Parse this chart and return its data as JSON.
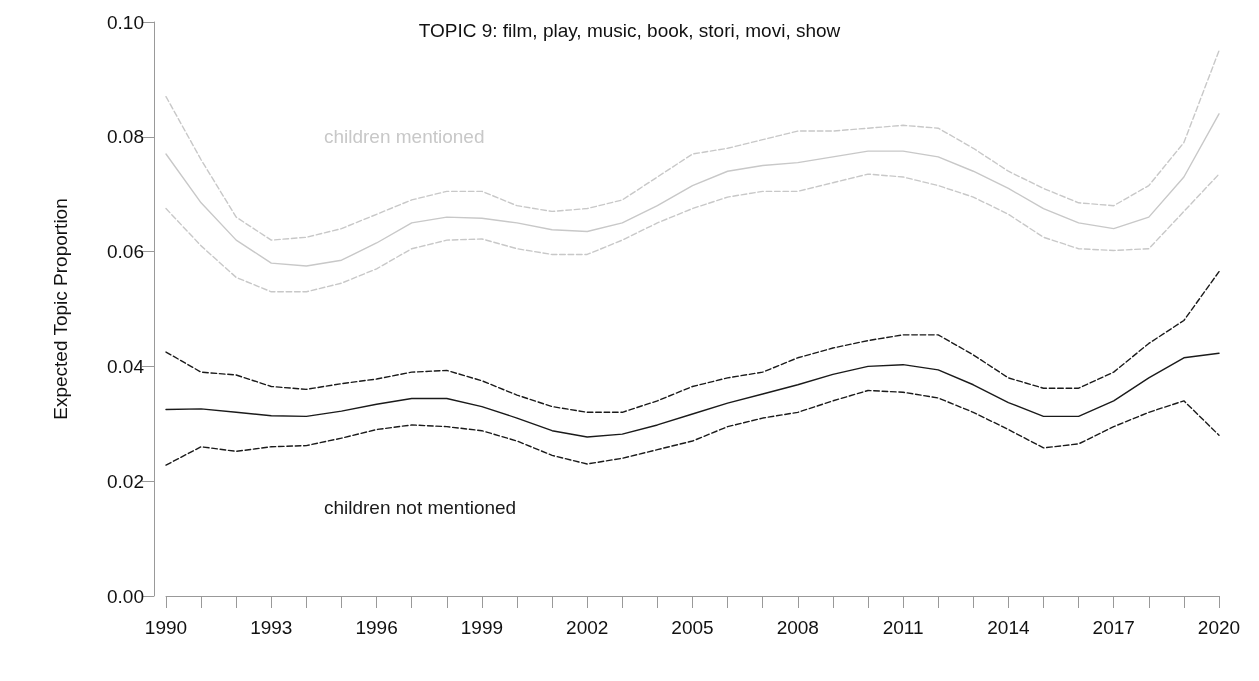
{
  "chart_data": {
    "type": "line",
    "title": "TOPIC 9: film, play, music, book, stori, movi, show",
    "ylabel": "Expected Topic Proportion",
    "x": [
      1990,
      1991,
      1992,
      1993,
      1994,
      1995,
      1996,
      1997,
      1998,
      1999,
      2000,
      2001,
      2002,
      2003,
      2004,
      2005,
      2006,
      2007,
      2008,
      2009,
      2010,
      2011,
      2012,
      2013,
      2014,
      2015,
      2016,
      2017,
      2018,
      2019,
      2020
    ],
    "series": [
      {
        "name": "children mentioned",
        "color": "#c8c8c8",
        "line_style": "solid",
        "values": [
          0.077,
          0.0685,
          0.062,
          0.058,
          0.0575,
          0.0585,
          0.0615,
          0.065,
          0.066,
          0.0658,
          0.065,
          0.0638,
          0.0635,
          0.065,
          0.068,
          0.0715,
          0.074,
          0.075,
          0.0755,
          0.0765,
          0.0775,
          0.0775,
          0.0765,
          0.074,
          0.071,
          0.0675,
          0.065,
          0.064,
          0.066,
          0.073,
          0.084
        ]
      },
      {
        "color": "#c8c8c8",
        "line_style": "dashed",
        "values": [
          0.087,
          0.076,
          0.066,
          0.062,
          0.0625,
          0.064,
          0.0665,
          0.069,
          0.0705,
          0.0705,
          0.068,
          0.067,
          0.0675,
          0.069,
          0.073,
          0.077,
          0.078,
          0.0795,
          0.081,
          0.081,
          0.0815,
          0.082,
          0.0815,
          0.078,
          0.074,
          0.071,
          0.0685,
          0.068,
          0.0715,
          0.079,
          0.095
        ]
      },
      {
        "color": "#c8c8c8",
        "line_style": "dashed",
        "values": [
          0.0675,
          0.061,
          0.0555,
          0.053,
          0.053,
          0.0545,
          0.057,
          0.0605,
          0.062,
          0.0622,
          0.0605,
          0.0595,
          0.0595,
          0.062,
          0.065,
          0.0675,
          0.0695,
          0.0705,
          0.0705,
          0.072,
          0.0735,
          0.073,
          0.0715,
          0.0695,
          0.0665,
          0.0625,
          0.0605,
          0.0602,
          0.0605,
          0.067,
          0.0735
        ]
      },
      {
        "name": "children not mentioned",
        "color": "#1a1a1a",
        "line_style": "solid",
        "values": [
          0.0325,
          0.0326,
          0.032,
          0.0314,
          0.0313,
          0.0322,
          0.0334,
          0.0344,
          0.0344,
          0.033,
          0.031,
          0.0288,
          0.0277,
          0.0282,
          0.0298,
          0.0317,
          0.0336,
          0.0352,
          0.0368,
          0.0386,
          0.04,
          0.0403,
          0.0394,
          0.0368,
          0.0337,
          0.0313,
          0.0313,
          0.034,
          0.038,
          0.0415,
          0.0423
        ]
      },
      {
        "color": "#1a1a1a",
        "line_style": "dashed",
        "values": [
          0.0425,
          0.039,
          0.0385,
          0.0365,
          0.036,
          0.037,
          0.0378,
          0.039,
          0.0393,
          0.0375,
          0.035,
          0.033,
          0.032,
          0.032,
          0.034,
          0.0365,
          0.038,
          0.039,
          0.0415,
          0.0432,
          0.0445,
          0.0455,
          0.0455,
          0.042,
          0.038,
          0.0362,
          0.0362,
          0.039,
          0.044,
          0.048,
          0.0565
        ]
      },
      {
        "color": "#1a1a1a",
        "line_style": "dashed",
        "values": [
          0.0228,
          0.026,
          0.0252,
          0.026,
          0.0262,
          0.0275,
          0.029,
          0.0298,
          0.0295,
          0.0288,
          0.027,
          0.0245,
          0.023,
          0.024,
          0.0255,
          0.027,
          0.0295,
          0.031,
          0.032,
          0.034,
          0.0358,
          0.0355,
          0.0345,
          0.032,
          0.029,
          0.0258,
          0.0265,
          0.0295,
          0.032,
          0.034,
          0.028
        ]
      }
    ],
    "xlim": [
      1990,
      2020
    ],
    "xticks": [
      1990,
      {
        "value": 1991,
        "label": null
      },
      {
        "value": 1992,
        "label": null
      },
      1993,
      {
        "value": 1994,
        "label": null
      },
      {
        "value": 1995,
        "label": null
      },
      1996,
      {
        "value": 1997,
        "label": null
      },
      {
        "value": 1998,
        "label": null
      },
      1999,
      {
        "value": 2000,
        "label": null
      },
      {
        "value": 2001,
        "label": null
      },
      2002,
      {
        "value": 2003,
        "label": null
      },
      {
        "value": 2004,
        "label": null
      },
      2005,
      {
        "value": 2006,
        "label": null
      },
      {
        "value": 2007,
        "label": null
      },
      2008,
      {
        "value": 2009,
        "label": null
      },
      {
        "value": 2010,
        "label": null
      },
      2011,
      {
        "value": 2012,
        "label": null
      },
      {
        "value": 2013,
        "label": null
      },
      2014,
      {
        "value": 2015,
        "label": null
      },
      {
        "value": 2016,
        "label": null
      },
      2017,
      {
        "value": 2018,
        "label": null
      },
      {
        "value": 2019,
        "label": null
      },
      2020
    ],
    "ylim": [
      0,
      0.1
    ],
    "yticks": [
      {
        "value": 0,
        "label": "0.00"
      },
      {
        "value": 0.02,
        "label": "0.02"
      },
      {
        "value": 0.04,
        "label": "0.04"
      },
      {
        "value": 0.06,
        "label": "0.06"
      },
      {
        "value": 0.08,
        "label": "0.08"
      },
      {
        "value": 0.1,
        "label": "0.10"
      }
    ],
    "grid": false,
    "legend": false,
    "marker": "none"
  }
}
